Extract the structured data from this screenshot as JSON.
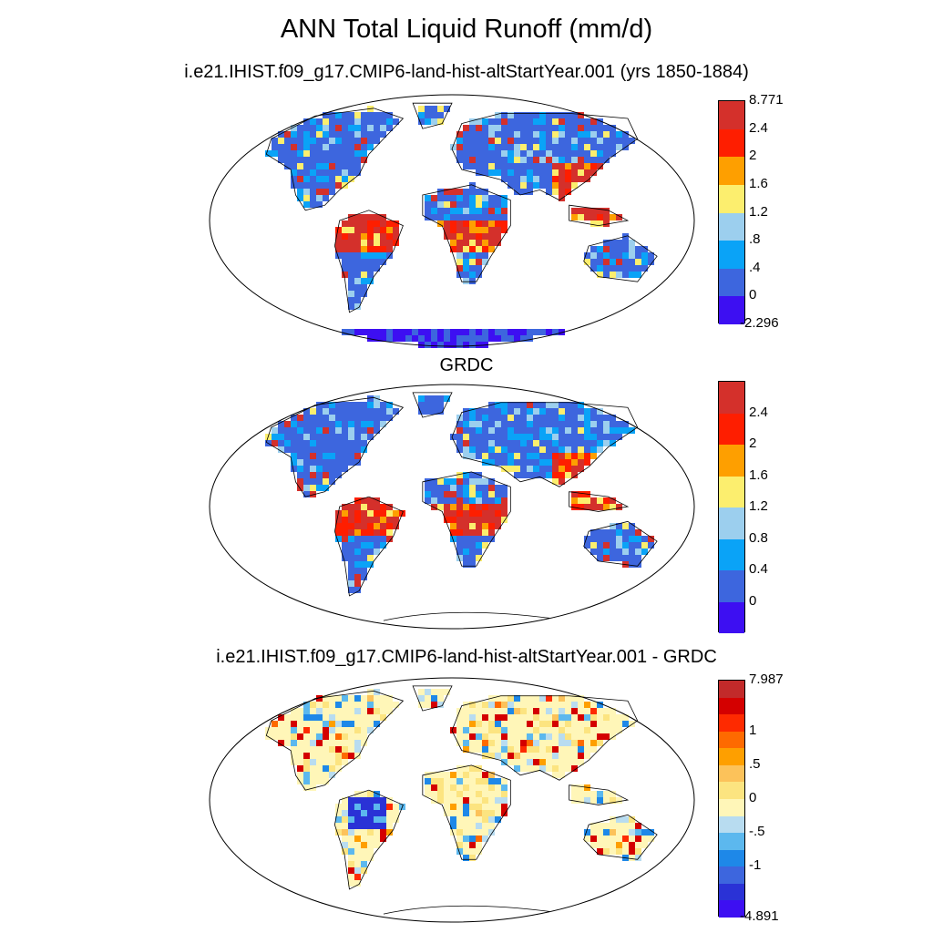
{
  "title": "ANN Total Liquid Runoff (mm/d)",
  "panels": [
    {
      "id": "model",
      "title": "i.e21.IHIST.f09_g17.CMIP6-land-hist-altStartYear.001 (yrs 1850-1884)",
      "colorbar": {
        "colors": [
          "#3d0ff2",
          "#3d66de",
          "#0aa3f7",
          "#9ccfee",
          "#fcee6e",
          "#fe9f00",
          "#fe1e00",
          "#d4302b"
        ],
        "labels": [
          "-2.296",
          "0",
          ".4",
          ".8",
          "1.2",
          "1.6",
          "2",
          "2.4",
          "8.771"
        ]
      }
    },
    {
      "id": "grdc",
      "title": "GRDC",
      "colorbar": {
        "colors": [
          "#3d0ff2",
          "#3d66de",
          "#0aa3f7",
          "#9ccfee",
          "#fcee6e",
          "#fe9f00",
          "#fe1e00",
          "#d4302b"
        ],
        "labels": [
          "0",
          "0.4",
          "0.8",
          "1.2",
          "1.6",
          "2",
          "2.4"
        ]
      }
    },
    {
      "id": "diff",
      "title": "i.e21.IHIST.f09_g17.CMIP6-land-hist-altStartYear.001 - GRDC",
      "colorbar": {
        "colors": [
          "#3d0ff2",
          "#2a32d6",
          "#3d66de",
          "#1e88e8",
          "#5cb8ee",
          "#b8dcf0",
          "#fff6b8",
          "#fce480",
          "#fcc25a",
          "#fe9f00",
          "#fe6a00",
          "#fe2a00",
          "#d40000",
          "#c22a2a"
        ],
        "labels": [
          "-4.891",
          "-1",
          "-.5",
          "0",
          ".5",
          "1",
          "7.987"
        ]
      }
    }
  ]
}
